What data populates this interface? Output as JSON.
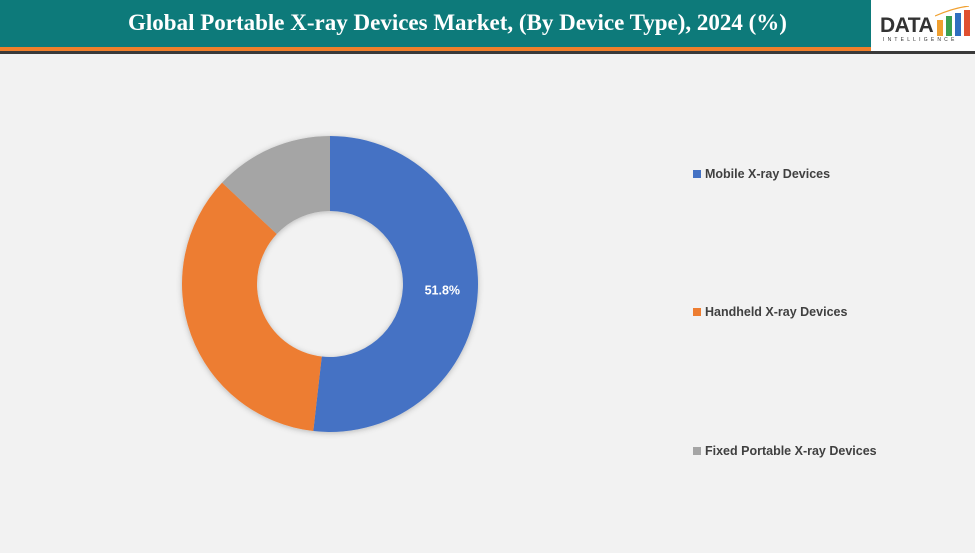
{
  "header": {
    "title": "Global Portable X-ray Devices Market, (By Device Type), 2024 (%)"
  },
  "logo": {
    "text": "DATA",
    "subtext": "INTELLIGENCE"
  },
  "colors": {
    "header": "#0d7a7a",
    "accent": "#f07f2a"
  },
  "chart_data": {
    "type": "pie",
    "donut": true,
    "categories": [
      "Mobile X-ray Devices",
      "Handheld X-ray Devices",
      "Fixed Portable X-ray Devices"
    ],
    "values": [
      51.8,
      35.2,
      13.0
    ],
    "colors": [
      "#4472c4",
      "#ed7d31",
      "#a5a5a5"
    ],
    "data_labels": [
      "51.8%",
      "",
      ""
    ],
    "legend_position": "right"
  }
}
